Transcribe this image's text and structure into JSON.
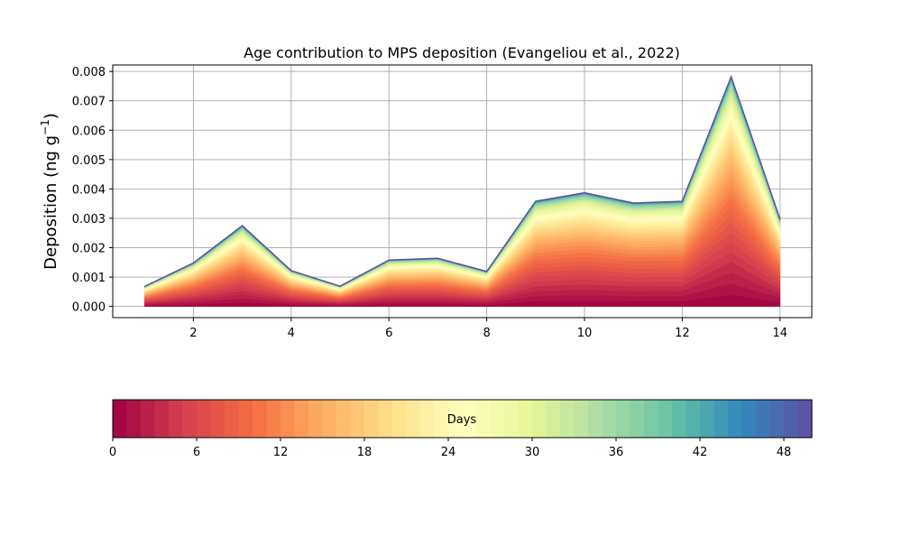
{
  "chart_data": {
    "type": "area",
    "title": "Age contribution to MPS deposition (Evangeliou et al., 2022)",
    "xlabel": "",
    "ylabel": "Deposition (ng g",
    "ylabel_sup": "−1",
    "ylabel_close": ")",
    "x": [
      1,
      2,
      3,
      4,
      5,
      6,
      7,
      8,
      9,
      10,
      11,
      12,
      13,
      14
    ],
    "total": [
      0.00068,
      0.00148,
      0.00275,
      0.00122,
      0.00069,
      0.00158,
      0.00164,
      0.00119,
      0.00358,
      0.00387,
      0.00352,
      0.00358,
      0.00782,
      0.00297
    ],
    "xlim": [
      0.35,
      14.65
    ],
    "ylim": [
      -0.00038,
      0.00822
    ],
    "xticks": [
      2,
      4,
      6,
      8,
      10,
      12,
      14
    ],
    "yticks": [
      0.0,
      0.001,
      0.002,
      0.003,
      0.004,
      0.005,
      0.006,
      0.007,
      0.008
    ],
    "ytick_labels": [
      "0.000",
      "0.001",
      "0.002",
      "0.003",
      "0.004",
      "0.005",
      "0.006",
      "0.007",
      "0.008"
    ],
    "grid": true,
    "colormap": "Spectral",
    "colorbar": {
      "label": "Days",
      "min": 0,
      "max": 50,
      "ticks": [
        0,
        6,
        12,
        18,
        24,
        30,
        36,
        42,
        48
      ],
      "orientation": "horizontal"
    },
    "age_bands": 50
  },
  "colors": {
    "grid": "#b0b0b0",
    "axes": "#000000"
  }
}
